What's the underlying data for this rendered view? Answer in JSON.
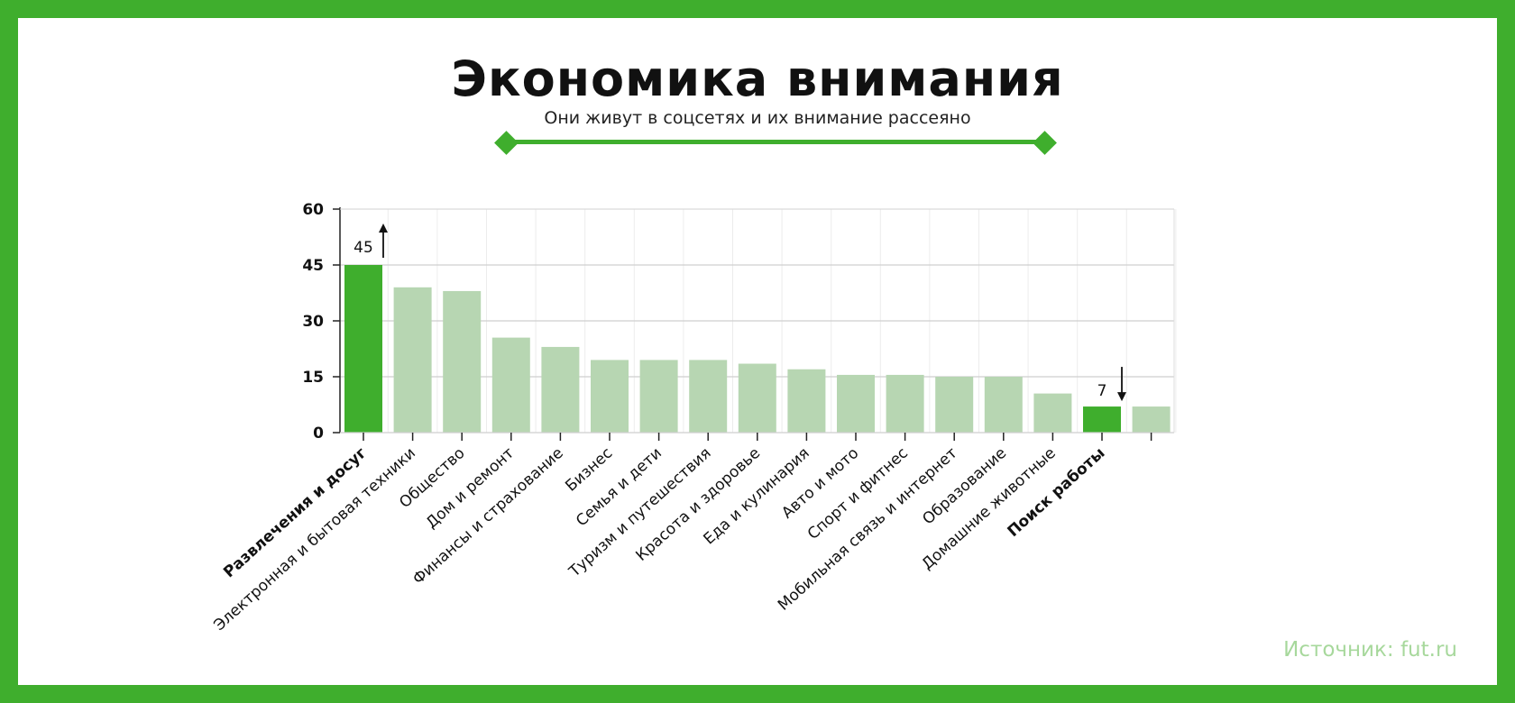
{
  "header": {
    "title": "Экономика внимания",
    "subtitle": "Они живут в соцсетях и их внимание рассеяно"
  },
  "source": {
    "label": "Источник:",
    "value": "fut.ru"
  },
  "colors": {
    "frame": "#3fae2d",
    "accent_bar": "#3fae2d",
    "bar": "#b7d6b2",
    "source_text": "#a7d89c"
  },
  "chart_data": {
    "type": "bar",
    "title": "",
    "xlabel": "",
    "ylabel": "",
    "ylim": [
      0,
      60
    ],
    "yticks": [
      "0",
      "15",
      "30",
      "45",
      "60"
    ],
    "grid": true,
    "categories": [
      "Развлечения и досуг",
      "Электронная и бытовая техники",
      "Общество",
      "Дом и ремонт",
      "Финансы и страхование",
      "Бизнес",
      "Семья и дети",
      "Туризм и путешествия",
      "Красота и здоровье",
      "Еда и кулинария",
      "Авто и мото",
      "Спорт и фитнес",
      "Мобильная связь и интернет",
      "Образование",
      "Домашние животные",
      "Поиск работы",
      ""
    ],
    "values": [
      45,
      39,
      38,
      25.5,
      23,
      19.5,
      19.5,
      19.5,
      18.5,
      17,
      15.5,
      15.5,
      15,
      15,
      10.5,
      7,
      7
    ],
    "highlighted": [
      0,
      15
    ],
    "bold_labels": [
      0,
      15
    ],
    "annotations": [
      {
        "index": 0,
        "text": "45",
        "arrow": "up"
      },
      {
        "index": 15,
        "text": "7",
        "arrow": "down"
      }
    ]
  }
}
